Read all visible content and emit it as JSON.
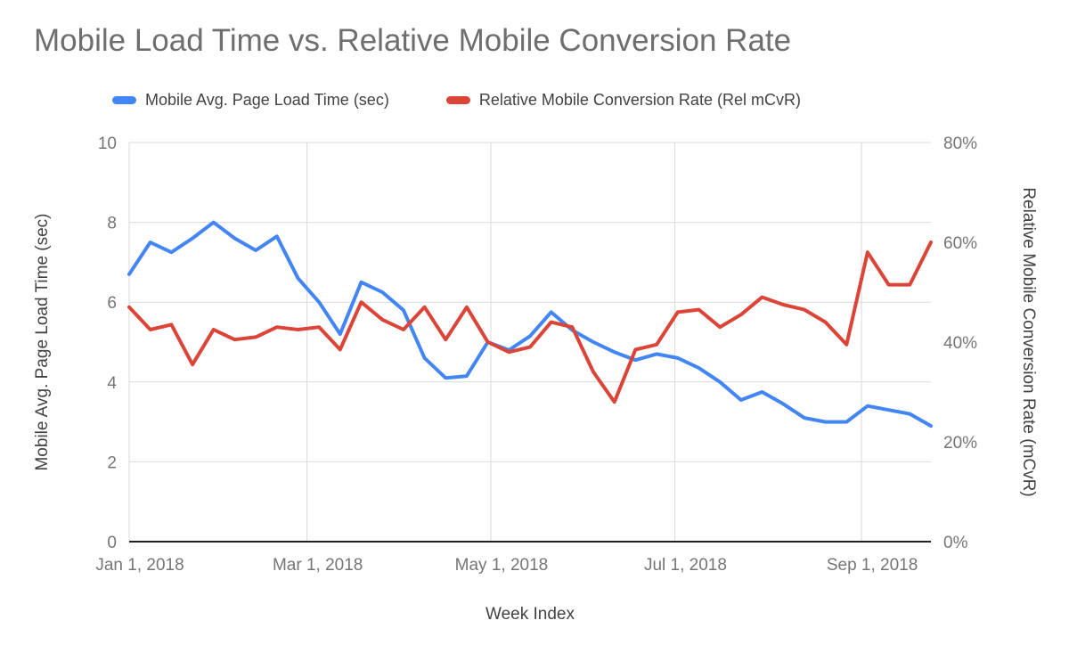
{
  "chart_data": {
    "type": "line",
    "title": "Mobile Load Time vs. Relative Mobile Conversion Rate",
    "xlabel": "Week Index",
    "ylabel_left": "Mobile Avg. Page Load Time (sec)",
    "ylabel_right": "Relative Mobile Conversion Rate (mCvR)",
    "grid": true,
    "legend_position": "top",
    "xlim_weeks": [
      0,
      38
    ],
    "ylim_left": [
      0,
      10
    ],
    "ylim_right_pct": [
      0,
      80
    ],
    "y_left_ticks": [
      0,
      2,
      4,
      6,
      8,
      10
    ],
    "y_right_ticks": [
      {
        "value": 0,
        "label": "0%"
      },
      {
        "value": 20,
        "label": "20%"
      },
      {
        "value": 40,
        "label": "40%"
      },
      {
        "value": 60,
        "label": "60%"
      },
      {
        "value": 80,
        "label": "80%"
      }
    ],
    "x_ticks": [
      {
        "week": 0,
        "label": "Jan 1, 2018"
      },
      {
        "week": 8.43,
        "label": "Mar 1, 2018"
      },
      {
        "week": 17.14,
        "label": "May 1, 2018"
      },
      {
        "week": 25.86,
        "label": "Jul 1, 2018"
      },
      {
        "week": 34.71,
        "label": "Sep 1, 2018"
      }
    ],
    "x_week_index": [
      0,
      1,
      2,
      3,
      4,
      5,
      6,
      7,
      8,
      9,
      10,
      11,
      12,
      13,
      14,
      15,
      16,
      17,
      18,
      19,
      20,
      21,
      22,
      23,
      24,
      25,
      26,
      27,
      28,
      29,
      30,
      31,
      32,
      33,
      34,
      35,
      36,
      37,
      38
    ],
    "series": [
      {
        "name": "Mobile Avg. Page Load Time (sec)",
        "axis": "left",
        "unit": "sec",
        "color": "#4285f4",
        "values": [
          6.7,
          7.5,
          7.25,
          7.6,
          8.0,
          7.6,
          7.3,
          7.65,
          6.6,
          6.0,
          5.2,
          6.5,
          6.25,
          5.8,
          4.6,
          4.1,
          4.15,
          5.0,
          4.8,
          5.15,
          5.75,
          5.3,
          5.0,
          4.75,
          4.55,
          4.7,
          4.6,
          4.35,
          4.0,
          3.55,
          3.75,
          3.45,
          3.1,
          3.0,
          3.0,
          3.4,
          3.3,
          3.2,
          2.9
        ]
      },
      {
        "name": "Relative Mobile Conversion Rate (Rel mCvR)",
        "axis": "right",
        "unit": "%",
        "color": "#db4437",
        "values": [
          47,
          42.5,
          43.5,
          35.5,
          42.5,
          40.5,
          41,
          43,
          42.5,
          43,
          38.5,
          48,
          44.5,
          42.5,
          47,
          40.5,
          47,
          40,
          38,
          39,
          44,
          43,
          34,
          28,
          38.5,
          39.5,
          46,
          46.5,
          43,
          45.5,
          49,
          47.5,
          46.5,
          44,
          39.5,
          58,
          51.5,
          51.5,
          60
        ]
      }
    ],
    "style": {
      "gridline_color": "#d9d9d9",
      "baseline_color": "#212121",
      "tick_label_color": "#757575",
      "title_color": "#6e6e6e",
      "axis_title_color": "#424242",
      "line_width": 4
    }
  }
}
